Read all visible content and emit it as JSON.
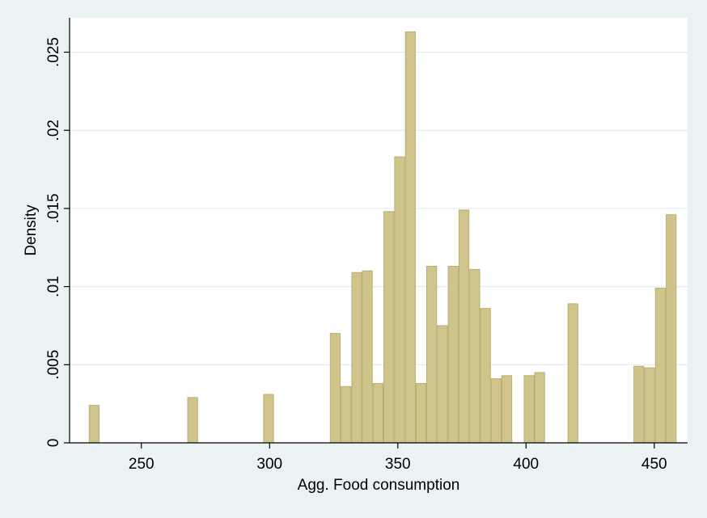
{
  "chart_data": {
    "type": "bar",
    "histogram": true,
    "title": "",
    "xlabel": "Agg. Food consumption",
    "ylabel": "Density",
    "xlim": [
      222,
      463
    ],
    "ylim": [
      0,
      0.0272
    ],
    "grid": true,
    "bar_color": "#cfc58c",
    "bar_edge_color": "#b9ae72",
    "xticks": [
      {
        "value": 250,
        "label": "250"
      },
      {
        "value": 300,
        "label": "300"
      },
      {
        "value": 350,
        "label": "350"
      },
      {
        "value": 400,
        "label": "400"
      },
      {
        "value": 450,
        "label": "450"
      }
    ],
    "yticks": [
      {
        "value": 0,
        "label": "0"
      },
      {
        "value": 0.005,
        "label": ".005"
      },
      {
        "value": 0.01,
        "label": ".01"
      },
      {
        "value": 0.015,
        "label": ".015"
      },
      {
        "value": 0.02,
        "label": ".02"
      },
      {
        "value": 0.025,
        "label": ".025"
      }
    ],
    "bin_width": 4.18,
    "bars": [
      {
        "x": 231.6,
        "value": 0.0024
      },
      {
        "x": 270.0,
        "value": 0.0029
      },
      {
        "x": 299.6,
        "value": 0.0031
      },
      {
        "x": 325.6,
        "value": 0.007
      },
      {
        "x": 329.8,
        "value": 0.0036
      },
      {
        "x": 334.0,
        "value": 0.0109
      },
      {
        "x": 338.1,
        "value": 0.011
      },
      {
        "x": 342.3,
        "value": 0.0038
      },
      {
        "x": 346.5,
        "value": 0.0148
      },
      {
        "x": 350.7,
        "value": 0.0183
      },
      {
        "x": 354.9,
        "value": 0.0263
      },
      {
        "x": 359.1,
        "value": 0.0038
      },
      {
        "x": 363.2,
        "value": 0.0113
      },
      {
        "x": 367.4,
        "value": 0.0075
      },
      {
        "x": 371.6,
        "value": 0.0113
      },
      {
        "x": 375.8,
        "value": 0.0149
      },
      {
        "x": 380.0,
        "value": 0.0111
      },
      {
        "x": 384.2,
        "value": 0.0086
      },
      {
        "x": 388.4,
        "value": 0.0041
      },
      {
        "x": 392.5,
        "value": 0.0043
      },
      {
        "x": 401.2,
        "value": 0.0043
      },
      {
        "x": 405.3,
        "value": 0.0045
      },
      {
        "x": 418.3,
        "value": 0.0089
      },
      {
        "x": 444.0,
        "value": 0.0049
      },
      {
        "x": 448.2,
        "value": 0.0048
      },
      {
        "x": 452.4,
        "value": 0.0099
      },
      {
        "x": 456.6,
        "value": 0.0146
      }
    ]
  }
}
